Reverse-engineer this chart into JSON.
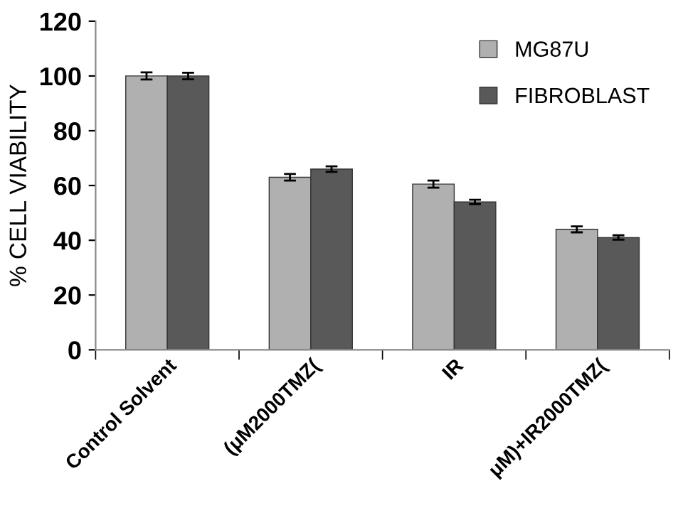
{
  "chart_data": {
    "type": "bar",
    "ylabel": "% CELL VIABILITY",
    "categories": [
      "Control Solvent",
      "(μM2000TMZ(",
      "IR",
      "μM)+IR2000TMZ("
    ],
    "series": [
      {
        "name": "MG87U",
        "color": "#b0b0b0",
        "values": [
          100,
          63,
          60.5,
          44
        ],
        "errors": [
          1.3,
          1.2,
          1.3,
          1.1
        ]
      },
      {
        "name": "FIBROBLAST",
        "color": "#595959",
        "values": [
          100,
          66,
          54,
          41
        ],
        "errors": [
          1.2,
          1,
          0.8,
          0.8
        ]
      }
    ],
    "ylim": [
      0,
      120
    ],
    "yticks": [
      0,
      20,
      40,
      60,
      80,
      100,
      120
    ],
    "grid": false,
    "legend": "top right"
  }
}
